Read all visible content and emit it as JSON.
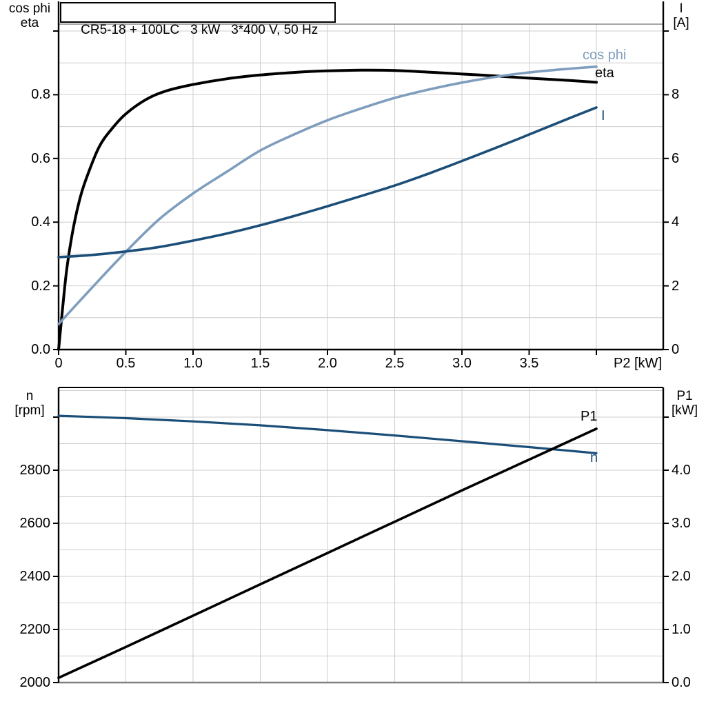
{
  "title": "CR5-18 + 100LC   3 kW   3*400 V, 50 Hz",
  "colors": {
    "dark_blue": "#1b4e78",
    "light_blue": "#7f9dbd",
    "black": "#000000",
    "grid": "#cdcdcd",
    "frame_top": "#888888",
    "bottom_border": "#808080"
  },
  "top_chart": {
    "left_axis": {
      "line1": "cos phi",
      "line2": "eta",
      "ticks": [
        "0.0",
        "0.2",
        "0.4",
        "0.6",
        "0.8"
      ]
    },
    "right_axis": {
      "line1": "I",
      "line2": "[A]",
      "ticks": [
        "0",
        "2",
        "4",
        "6",
        "8"
      ]
    },
    "x_axis": {
      "ticks": [
        "0",
        "0.5",
        "1.0",
        "1.5",
        "2.0",
        "2.5",
        "3.0",
        "3.5"
      ],
      "label": "P2 [kW]"
    },
    "curve_labels": {
      "cos_phi": "cos phi",
      "eta": "eta",
      "current": "I"
    }
  },
  "bottom_chart": {
    "left_axis": {
      "line1": "n",
      "line2": "[rpm]",
      "ticks": [
        "2000",
        "2200",
        "2400",
        "2600",
        "2800"
      ]
    },
    "right_axis": {
      "line1": "P1",
      "line2": "[kW]",
      "ticks": [
        "0.0",
        "1.0",
        "2.0",
        "3.0",
        "4.0"
      ]
    },
    "curve_labels": {
      "p1": "P1",
      "n": "n"
    }
  },
  "chart_data": [
    {
      "id": "motor-top",
      "type": "line",
      "title": "CR5-18 + 100LC 3 kW 3*400 V, 50 Hz",
      "xlabel": "P2 [kW]",
      "xlim": [
        0,
        4.5
      ],
      "x_ticks": [
        0,
        0.5,
        1.0,
        1.5,
        2.0,
        2.5,
        3.0,
        3.5,
        4.0
      ],
      "grid": true,
      "left_axis": {
        "label": "cos phi / eta",
        "lim": [
          0,
          1.0
        ],
        "tick_values": [
          0,
          0.2,
          0.4,
          0.6,
          0.8,
          1.0
        ]
      },
      "right_axis": {
        "label": "I [A]",
        "lim": [
          0,
          10
        ],
        "tick_values": [
          0,
          2,
          4,
          6,
          8,
          10
        ]
      },
      "series": [
        {
          "key": "eta",
          "name": "eta",
          "axis": "left",
          "color": "black",
          "width": 4,
          "x": [
            0,
            0.03,
            0.06,
            0.1,
            0.15,
            0.2,
            0.3,
            0.4,
            0.5,
            0.65,
            0.8,
            1.0,
            1.25,
            1.5,
            1.75,
            2.0,
            2.25,
            2.5,
            2.75,
            3.0,
            3.25,
            3.5,
            3.75,
            4.0
          ],
          "y": [
            0,
            0.13,
            0.25,
            0.36,
            0.46,
            0.53,
            0.635,
            0.695,
            0.74,
            0.785,
            0.812,
            0.832,
            0.85,
            0.862,
            0.87,
            0.875,
            0.877,
            0.876,
            0.871,
            0.865,
            0.859,
            0.852,
            0.846,
            0.839
          ]
        },
        {
          "key": "cos-phi",
          "name": "cos phi",
          "axis": "left",
          "color": "light_blue",
          "width": 3.6,
          "x": [
            0,
            0.25,
            0.5,
            0.75,
            1.0,
            1.25,
            1.5,
            1.75,
            2.0,
            2.25,
            2.5,
            2.75,
            3.0,
            3.25,
            3.5,
            3.75,
            4.0
          ],
          "y": [
            0.08,
            0.195,
            0.307,
            0.41,
            0.49,
            0.558,
            0.625,
            0.675,
            0.72,
            0.757,
            0.79,
            0.816,
            0.838,
            0.856,
            0.87,
            0.88,
            0.888
          ]
        },
        {
          "key": "i",
          "name": "I",
          "axis": "right",
          "color": "dark_blue",
          "width": 3.6,
          "x": [
            0,
            0.25,
            0.5,
            0.75,
            1.0,
            1.25,
            1.5,
            1.75,
            2.0,
            2.25,
            2.5,
            2.75,
            3.0,
            3.25,
            3.5,
            3.75,
            4.0
          ],
          "y": [
            2.9,
            2.97,
            3.08,
            3.22,
            3.42,
            3.64,
            3.9,
            4.19,
            4.5,
            4.82,
            5.15,
            5.52,
            5.92,
            6.33,
            6.75,
            7.18,
            7.6
          ]
        }
      ]
    },
    {
      "id": "motor-bottom",
      "type": "line",
      "xlabel": "P2 [kW]",
      "xlim": [
        0,
        4.5
      ],
      "grid": true,
      "left_axis": {
        "label": "n [rpm]",
        "lim": [
          2000,
          3100
        ],
        "tick_values": [
          2000,
          2200,
          2400,
          2600,
          2800,
          3000
        ]
      },
      "right_axis": {
        "label": "P1 [kW]",
        "lim": [
          0,
          5.5
        ],
        "tick_values": [
          0,
          1,
          2,
          3,
          4,
          5
        ]
      },
      "series": [
        {
          "key": "n",
          "name": "n",
          "axis": "left",
          "color": "dark_blue",
          "width": 3.2,
          "x": [
            0,
            0.5,
            1.0,
            1.5,
            2.0,
            2.5,
            3.0,
            3.5,
            4.0
          ],
          "y": [
            3005,
            2996,
            2984,
            2969,
            2951,
            2931,
            2909,
            2887,
            2864
          ]
        },
        {
          "key": "p1",
          "name": "P1",
          "axis": "right",
          "color": "black",
          "width": 3.6,
          "x": [
            0,
            0.5,
            1.0,
            1.5,
            2.0,
            2.5,
            3.0,
            3.5,
            4.0
          ],
          "y": [
            0.09,
            0.67,
            1.26,
            1.85,
            2.44,
            3.03,
            3.62,
            4.2,
            4.78
          ]
        }
      ]
    }
  ]
}
